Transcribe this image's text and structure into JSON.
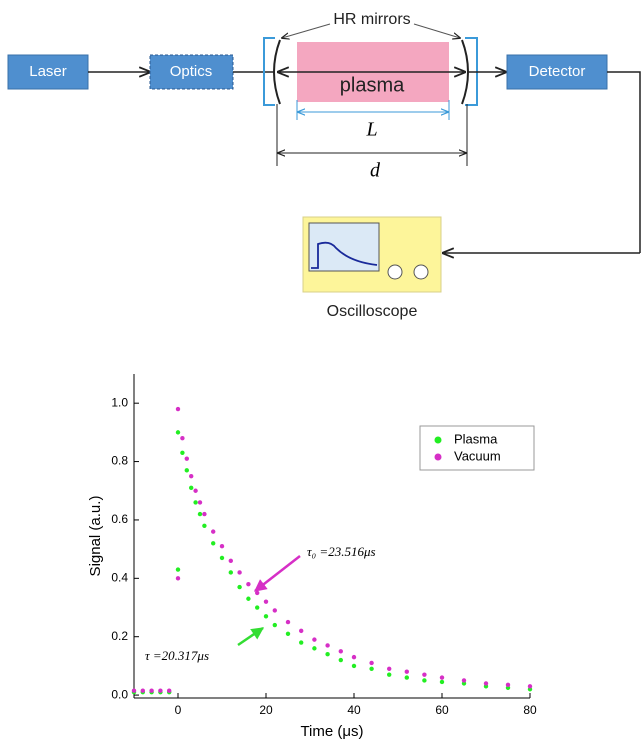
{
  "diagram": {
    "nodes": [
      {
        "label": "Laser"
      },
      {
        "label": "Optics"
      },
      {
        "label": "Detector"
      },
      {
        "label": "HR mirrors"
      },
      {
        "label": "plasma"
      },
      {
        "label": "L"
      },
      {
        "label": "d"
      },
      {
        "label": "Oscilloscope"
      }
    ]
  },
  "chart_data": {
    "type": "scatter",
    "xlabel": "Time (μs)",
    "ylabel": "Signal (a.u.)",
    "xlim": [
      -10,
      80
    ],
    "ylim": [
      -0.01,
      1.1
    ],
    "xticks": [
      0,
      20,
      40,
      60,
      80
    ],
    "yticks": [
      {
        "value": 0,
        "label": "0.0"
      },
      0.2,
      0.4,
      0.6,
      0.8,
      {
        "value": 1,
        "label": "1.0"
      }
    ],
    "legend": "upper right",
    "annotations": [
      {
        "text": "τ₀ =23.516μs",
        "color": "#d62fc6"
      },
      {
        "text": "τ =20.317μs",
        "color": "#33dd33"
      }
    ],
    "series": [
      {
        "name": "Plasma",
        "color": "#22ee22",
        "x": [
          -10,
          -8,
          -6,
          -4,
          -2,
          0,
          0,
          1,
          2,
          3,
          4,
          5,
          6,
          8,
          10,
          12,
          14,
          16,
          18,
          20,
          22,
          25,
          28,
          31,
          34,
          37,
          40,
          44,
          48,
          52,
          56,
          60,
          65,
          70,
          75,
          80
        ],
        "values": [
          0.01,
          0.01,
          0.01,
          0.01,
          0.01,
          0.43,
          0.9,
          0.83,
          0.77,
          0.71,
          0.66,
          0.62,
          0.58,
          0.52,
          0.47,
          0.42,
          0.37,
          0.33,
          0.3,
          0.27,
          0.24,
          0.21,
          0.18,
          0.16,
          0.14,
          0.12,
          0.1,
          0.09,
          0.07,
          0.06,
          0.05,
          0.045,
          0.04,
          0.03,
          0.025,
          0.02
        ]
      },
      {
        "name": "Vacuum",
        "color": "#d62fc6",
        "x": [
          -10,
          -8,
          -6,
          -4,
          -2,
          0,
          0,
          1,
          2,
          3,
          4,
          5,
          6,
          8,
          10,
          12,
          14,
          16,
          18,
          20,
          22,
          25,
          28,
          31,
          34,
          37,
          40,
          44,
          48,
          52,
          56,
          60,
          65,
          70,
          75,
          80
        ],
        "values": [
          0.015,
          0.015,
          0.015,
          0.015,
          0.015,
          0.4,
          0.98,
          0.88,
          0.81,
          0.75,
          0.7,
          0.66,
          0.62,
          0.56,
          0.51,
          0.46,
          0.42,
          0.38,
          0.35,
          0.32,
          0.29,
          0.25,
          0.22,
          0.19,
          0.17,
          0.15,
          0.13,
          0.11,
          0.09,
          0.08,
          0.07,
          0.06,
          0.05,
          0.04,
          0.035,
          0.03
        ]
      }
    ]
  }
}
